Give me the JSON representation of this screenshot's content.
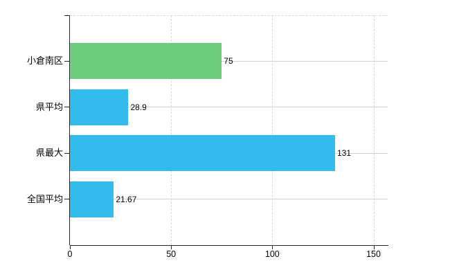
{
  "chart_data": {
    "type": "bar",
    "orientation": "horizontal",
    "title": "",
    "xlabel": "",
    "ylabel": "",
    "categories": [
      "小倉南区",
      "県平均",
      "県最大",
      "全国平均"
    ],
    "series": [
      {
        "name": "",
        "values": [
          75,
          28.9,
          131,
          21.67
        ]
      }
    ],
    "value_labels": [
      "75",
      "28.9",
      "131",
      "21.67"
    ],
    "bar_colors": [
      "#6fcd80",
      "#33bbee",
      "#33bbee",
      "#33bbee"
    ],
    "x_tick_labels": [
      "0",
      "50",
      "100",
      "150"
    ],
    "x_tick_values": [
      0,
      50,
      100,
      150
    ],
    "xlim": [
      0,
      157
    ],
    "grid": {
      "vertical_gridlines": true,
      "gridline_style": "dashed",
      "category_center_lines": true,
      "top_boundary_line": true
    },
    "legend_position": "none"
  },
  "colors": {
    "background": "#ffffff",
    "axis": "#262626",
    "gridline": "#d9d9d9",
    "category_line": "#cdd8cd",
    "text": "#000000",
    "green_bar": "#6fcd80",
    "blue_bar": "#33bbee"
  }
}
